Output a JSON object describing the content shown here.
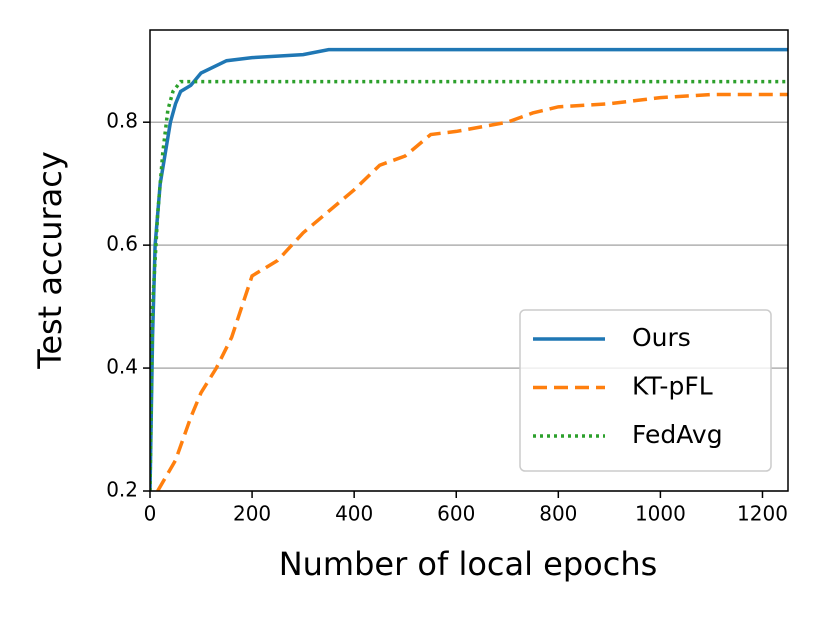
{
  "chart_data": {
    "type": "line",
    "xlabel": "Number of local epochs",
    "ylabel": "Test accuracy",
    "xlim": [
      0,
      1250
    ],
    "ylim": [
      0.2,
      0.95
    ],
    "xticks": [
      0,
      200,
      400,
      600,
      800,
      1000,
      1200
    ],
    "yticks": [
      0.2,
      0.4,
      0.6,
      0.8
    ],
    "grid": "y",
    "legend": "lower right",
    "series": [
      {
        "name": "Ours",
        "color": "#1f77b4",
        "style": "solid",
        "x": [
          0,
          5,
          10,
          20,
          30,
          40,
          50,
          60,
          80,
          100,
          150,
          200,
          300,
          350,
          1250
        ],
        "values": [
          0.2,
          0.45,
          0.6,
          0.7,
          0.75,
          0.8,
          0.83,
          0.85,
          0.86,
          0.88,
          0.9,
          0.905,
          0.91,
          0.918,
          0.918
        ]
      },
      {
        "name": "KT-pFL",
        "color": "#ff7f0e",
        "style": "dashed",
        "x": [
          15,
          50,
          80,
          100,
          130,
          160,
          200,
          250,
          300,
          350,
          400,
          450,
          500,
          550,
          600,
          700,
          750,
          800,
          900,
          1000,
          1100,
          1250
        ],
        "values": [
          0.2,
          0.25,
          0.32,
          0.36,
          0.4,
          0.45,
          0.55,
          0.575,
          0.62,
          0.655,
          0.69,
          0.73,
          0.745,
          0.78,
          0.785,
          0.8,
          0.815,
          0.825,
          0.83,
          0.84,
          0.845,
          0.845
        ]
      },
      {
        "name": "FedAvg",
        "color": "#2ca02c",
        "style": "dotted",
        "x": [
          0,
          5,
          15,
          25,
          35,
          45,
          60,
          1250
        ],
        "values": [
          0.2,
          0.5,
          0.65,
          0.75,
          0.82,
          0.85,
          0.866,
          0.866
        ]
      }
    ]
  }
}
